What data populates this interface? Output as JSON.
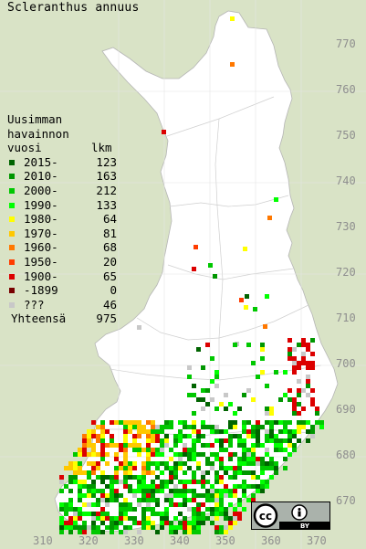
{
  "title": "Scleranthus annuus",
  "legend": {
    "heading": [
      "Uusimman",
      "havainnon",
      "vuosi"
    ],
    "count_heading": "lkm",
    "rows": [
      {
        "label": "2015-",
        "count": "123",
        "color": "#006400"
      },
      {
        "label": "2010-",
        "count": "163",
        "color": "#009600"
      },
      {
        "label": "2000-",
        "count": "212",
        "color": "#00c800"
      },
      {
        "label": "1990-",
        "count": "133",
        "color": "#00ff00"
      },
      {
        "label": "1980-",
        "count": "64",
        "color": "#ffff00"
      },
      {
        "label": "1970-",
        "count": "81",
        "color": "#ffc800"
      },
      {
        "label": "1960-",
        "count": "68",
        "color": "#ff7800"
      },
      {
        "label": "1950-",
        "count": "20",
        "color": "#ff3c00"
      },
      {
        "label": "1900-",
        "count": "65",
        "color": "#dc0000"
      },
      {
        "label": "-1899",
        "count": "0",
        "color": "#780000"
      },
      {
        "label": "???",
        "count": "46",
        "color": "#c8c8c8"
      }
    ],
    "total_label": "Yhteensä",
    "total_count": "975"
  },
  "grid_labels": {
    "north": [
      "770",
      "760",
      "750",
      "740",
      "730",
      "720",
      "710",
      "700",
      "690",
      "680",
      "670"
    ],
    "east": [
      "310",
      "320",
      "330",
      "340",
      "350",
      "360",
      "370"
    ]
  },
  "badge": {
    "cc": "cc",
    "attribution": "BY"
  }
}
